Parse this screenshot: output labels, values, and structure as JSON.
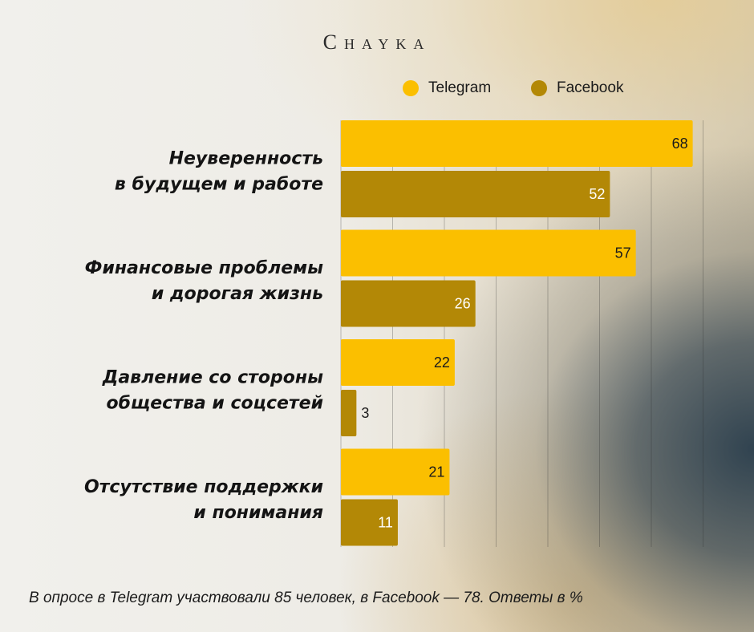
{
  "brand": "Chayka",
  "footnote": "В опросе в Telegram участвовали 85 человек, в Facebook — 78. Ответы в %",
  "colors": {
    "telegram": "#fbbf00",
    "facebook": "#b38806"
  },
  "chart_data": {
    "type": "bar",
    "orientation": "horizontal",
    "categories": [
      [
        "Неуверенность",
        "в будущем и работе"
      ],
      [
        "Финансовые проблемы",
        "и дорогая жизнь"
      ],
      [
        "Давление со стороны",
        "общества и соцсетей"
      ],
      [
        "Отсутствие поддержки",
        "и понимания"
      ]
    ],
    "series": [
      {
        "name": "Telegram",
        "color": "#fbbf00",
        "values": [
          68,
          57,
          22,
          21
        ]
      },
      {
        "name": "Facebook",
        "color": "#b38806",
        "values": [
          52,
          26,
          3,
          11
        ]
      }
    ],
    "xlim": [
      0,
      70
    ],
    "grid": true,
    "legend": "top-right",
    "unit": "%"
  }
}
